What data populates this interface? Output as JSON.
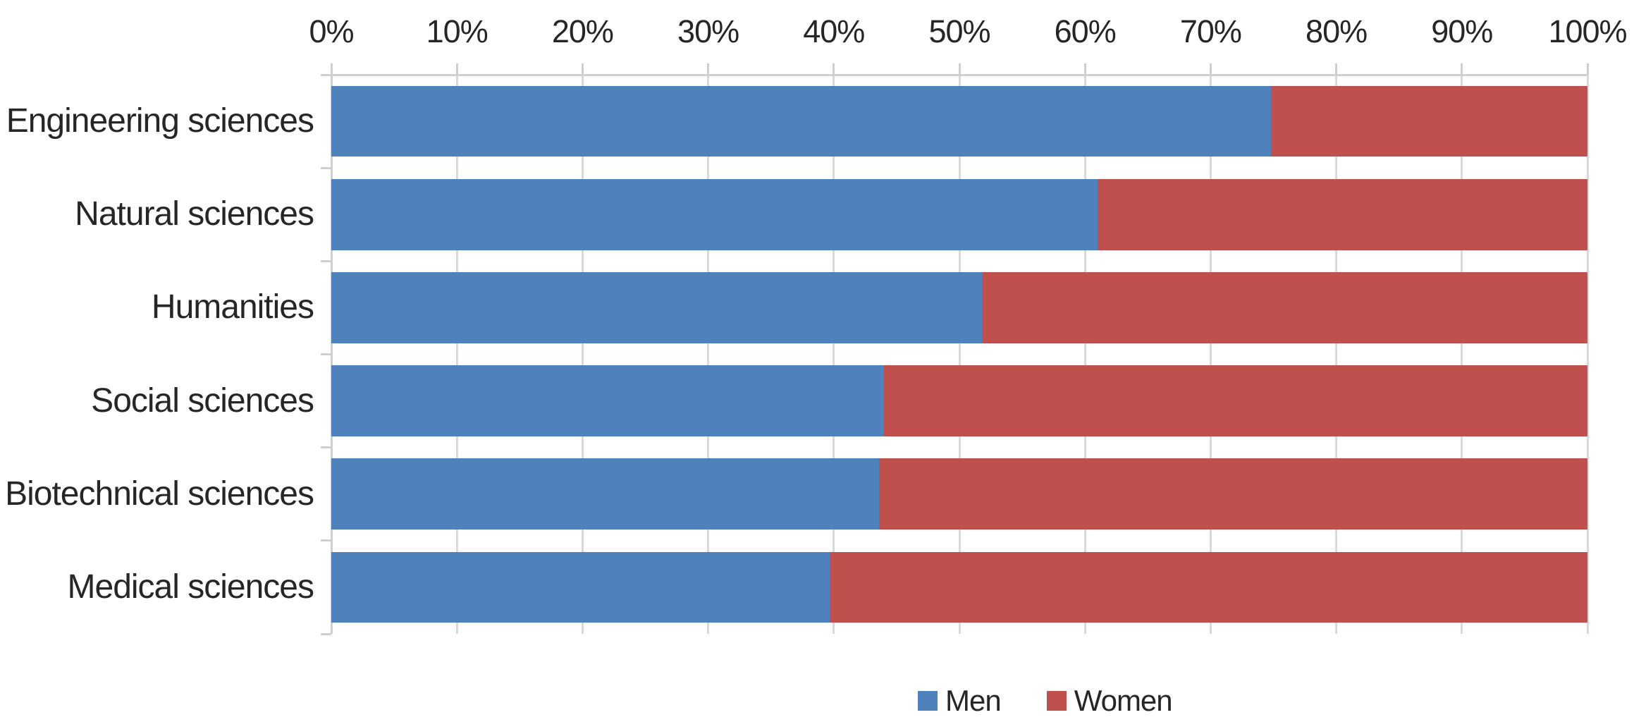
{
  "chart_data": {
    "type": "bar",
    "orientation": "horizontal",
    "stacked": true,
    "percent_stacked": true,
    "title": "",
    "categories": [
      "Engineering sciences",
      "Natural sciences",
      "Humanities",
      "Social sciences",
      "Biotechnical sciences",
      "Medical sciences"
    ],
    "series": [
      {
        "name": "Men",
        "color": "#4F81BD",
        "values": [
          74.8,
          61.0,
          51.8,
          44.0,
          43.6,
          39.7
        ]
      },
      {
        "name": "Women",
        "color": "#C0504D",
        "values": [
          25.2,
          39.0,
          48.2,
          56.0,
          56.4,
          60.3
        ]
      }
    ],
    "x_axis": {
      "position": "top",
      "min": 0,
      "max": 100,
      "unit": "%",
      "tick_labels": [
        "0%",
        "10%",
        "20%",
        "30%",
        "40%",
        "50%",
        "60%",
        "70%",
        "80%",
        "90%",
        "100%"
      ]
    },
    "y_axis": {
      "position": "left"
    },
    "legend": {
      "position": "bottom",
      "entries": [
        "Men",
        "Women"
      ]
    },
    "grid": true,
    "colors": {
      "gridline": "#D9D9D9",
      "axis": "#CFCFCF",
      "text": "#262626",
      "background": "#FFFFFF"
    }
  }
}
